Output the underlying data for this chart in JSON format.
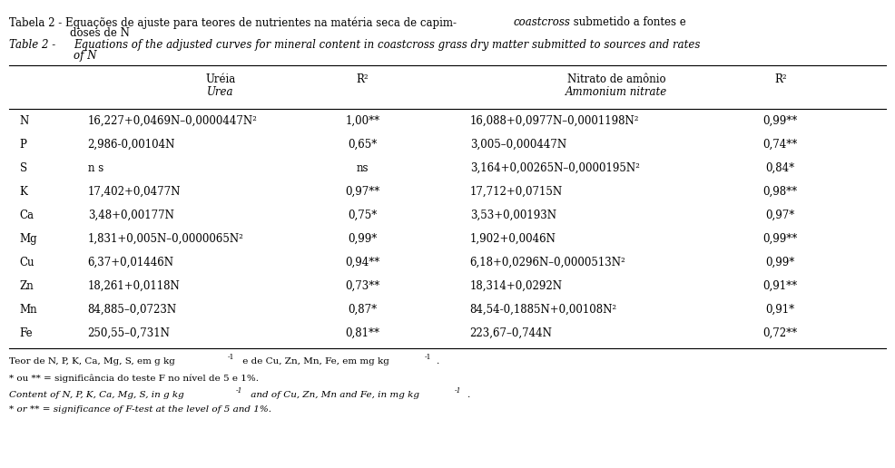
{
  "title_pt_1": "Tabela 2 - Equações de ajuste para teores de nutrientes na matéria seca de capim-",
  "title_pt_italic": "coastcross",
  "title_pt_end": " submetido a fontes e",
  "title_pt_2": "doses de N",
  "title_en_label": "Table 2 -",
  "title_en_body": "Equations of the adjusted curves for mineral content in coastcross grass dry matter submitted to sources and rates",
  "title_en_2": "of N",
  "rows": [
    [
      "N",
      "16,227+0,0469N–0,0000447N²",
      "1,00**",
      "16,088+0,0977N–0,0001198N²",
      "0,99**"
    ],
    [
      "P",
      "2,986-0,00104N",
      "0,65*",
      "3,005–0,000447N",
      "0,74**"
    ],
    [
      "S",
      "n s",
      "ns",
      "3,164+0,00265N–0,0000195N²",
      "0,84*"
    ],
    [
      "K",
      "17,402+0,0477N",
      "0,97**",
      "17,712+0,0715N",
      "0,98**"
    ],
    [
      "Ca",
      "3,48+0,00177N",
      "0,75*",
      "3,53+0,00193N",
      "0,97*"
    ],
    [
      "Mg",
      "1,831+0,005N–0,0000065N²",
      "0,99*",
      "1,902+0,0046N",
      "0,99**"
    ],
    [
      "Cu",
      "6,37+0,01446N",
      "0,94**",
      "6,18+0,0296N–0,0000513N²",
      "0,99*"
    ],
    [
      "Zn",
      "18,261+0,0118N",
      "0,73**",
      "18,314+0,0292N",
      "0,91**"
    ],
    [
      "Mn",
      "84,885–0,0723N",
      "0,87*",
      "84,54-0,1885N+0,00108N²",
      "0,91*"
    ],
    [
      "Fe",
      "250,55–0,731N",
      "0,81**",
      "223,67–0,744N",
      "0,72**"
    ]
  ],
  "hdr_urea": "Uréia",
  "hdr_urea_it": "Urea",
  "hdr_r2": "R²",
  "hdr_nitrato": "Nitrato de amônio",
  "hdr_nitrato_it": "Ammonium nitrate",
  "fn1a": "Teor de N, P, K, Ca, Mg, S, em g kg",
  "fn1b": " e de Cu, Zn, Mn, Fe, em mg kg",
  "fn2": "* ou ** = significância do teste F no nível de 5 e 1%.",
  "fn3a": "Content of N, P, K, Ca, Mg, S, in g kg",
  "fn3b": " and of Cu, Zn, Mn and Fe, in mg kg",
  "fn4": "* or ** = significance of F-test at the level of 5 and 1%.",
  "bg_color": "white",
  "text_color": "black",
  "font_size": 8.5,
  "font_size_small": 7.5
}
